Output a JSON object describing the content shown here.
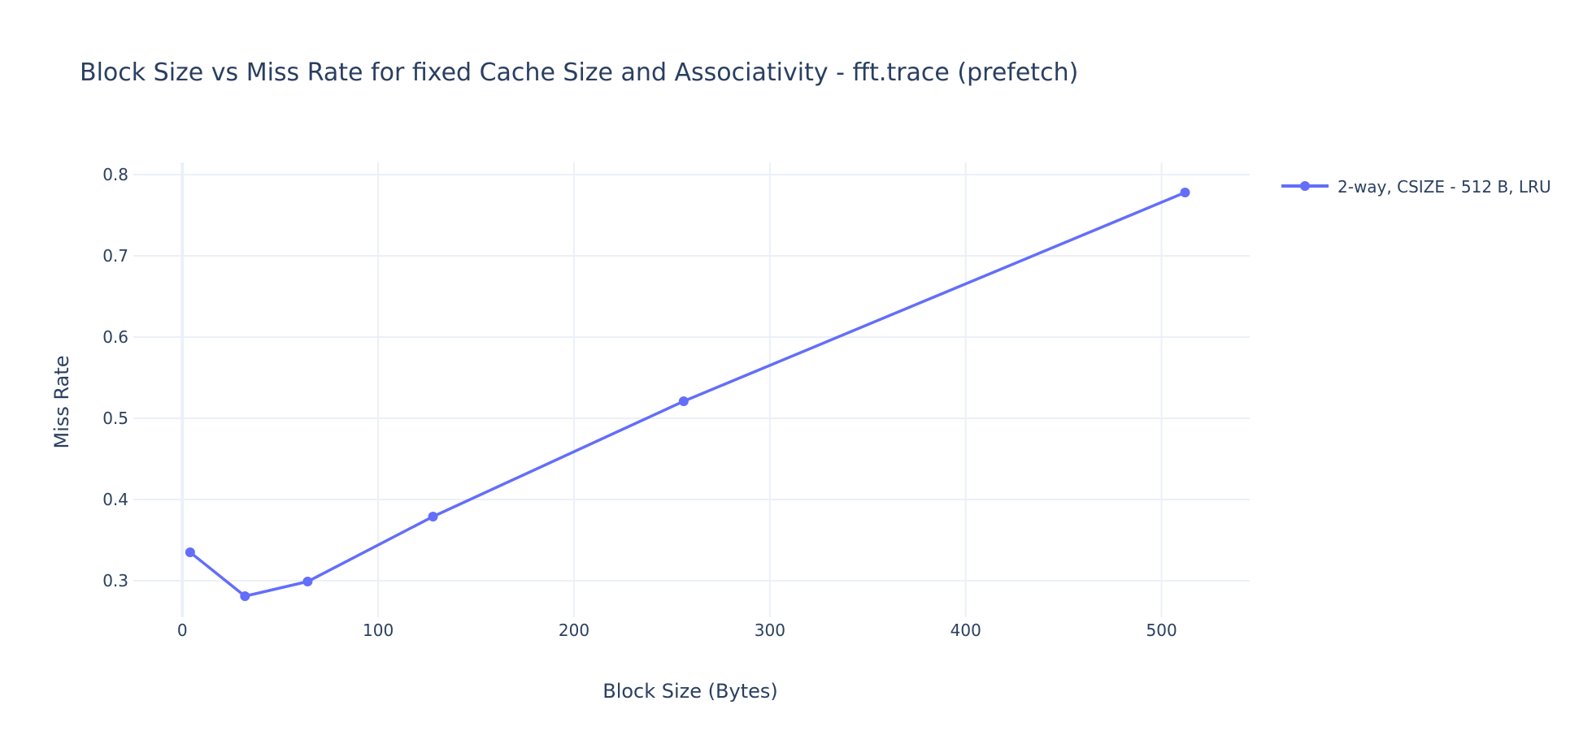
{
  "chart_data": {
    "type": "line",
    "title": "Block Size vs Miss Rate for fixed Cache Size and Associativity - fft.trace (prefetch)",
    "xlabel": "Block Size (Bytes)",
    "ylabel": "Miss Rate",
    "xlim": [
      -25,
      545
    ],
    "ylim": [
      0.255,
      0.815
    ],
    "x_ticks": [
      0,
      100,
      200,
      300,
      400,
      500
    ],
    "y_ticks": [
      0.3,
      0.4,
      0.5,
      0.6,
      0.7,
      0.8
    ],
    "grid": true,
    "legend_position": "top-right",
    "series": [
      {
        "name": "2-way, CSIZE - 512 B, LRU",
        "color": "#636efa",
        "mode": "lines+markers",
        "x": [
          4,
          32,
          64,
          128,
          256,
          512
        ],
        "y": [
          0.335,
          0.281,
          0.299,
          0.379,
          0.521,
          0.778
        ]
      }
    ]
  }
}
